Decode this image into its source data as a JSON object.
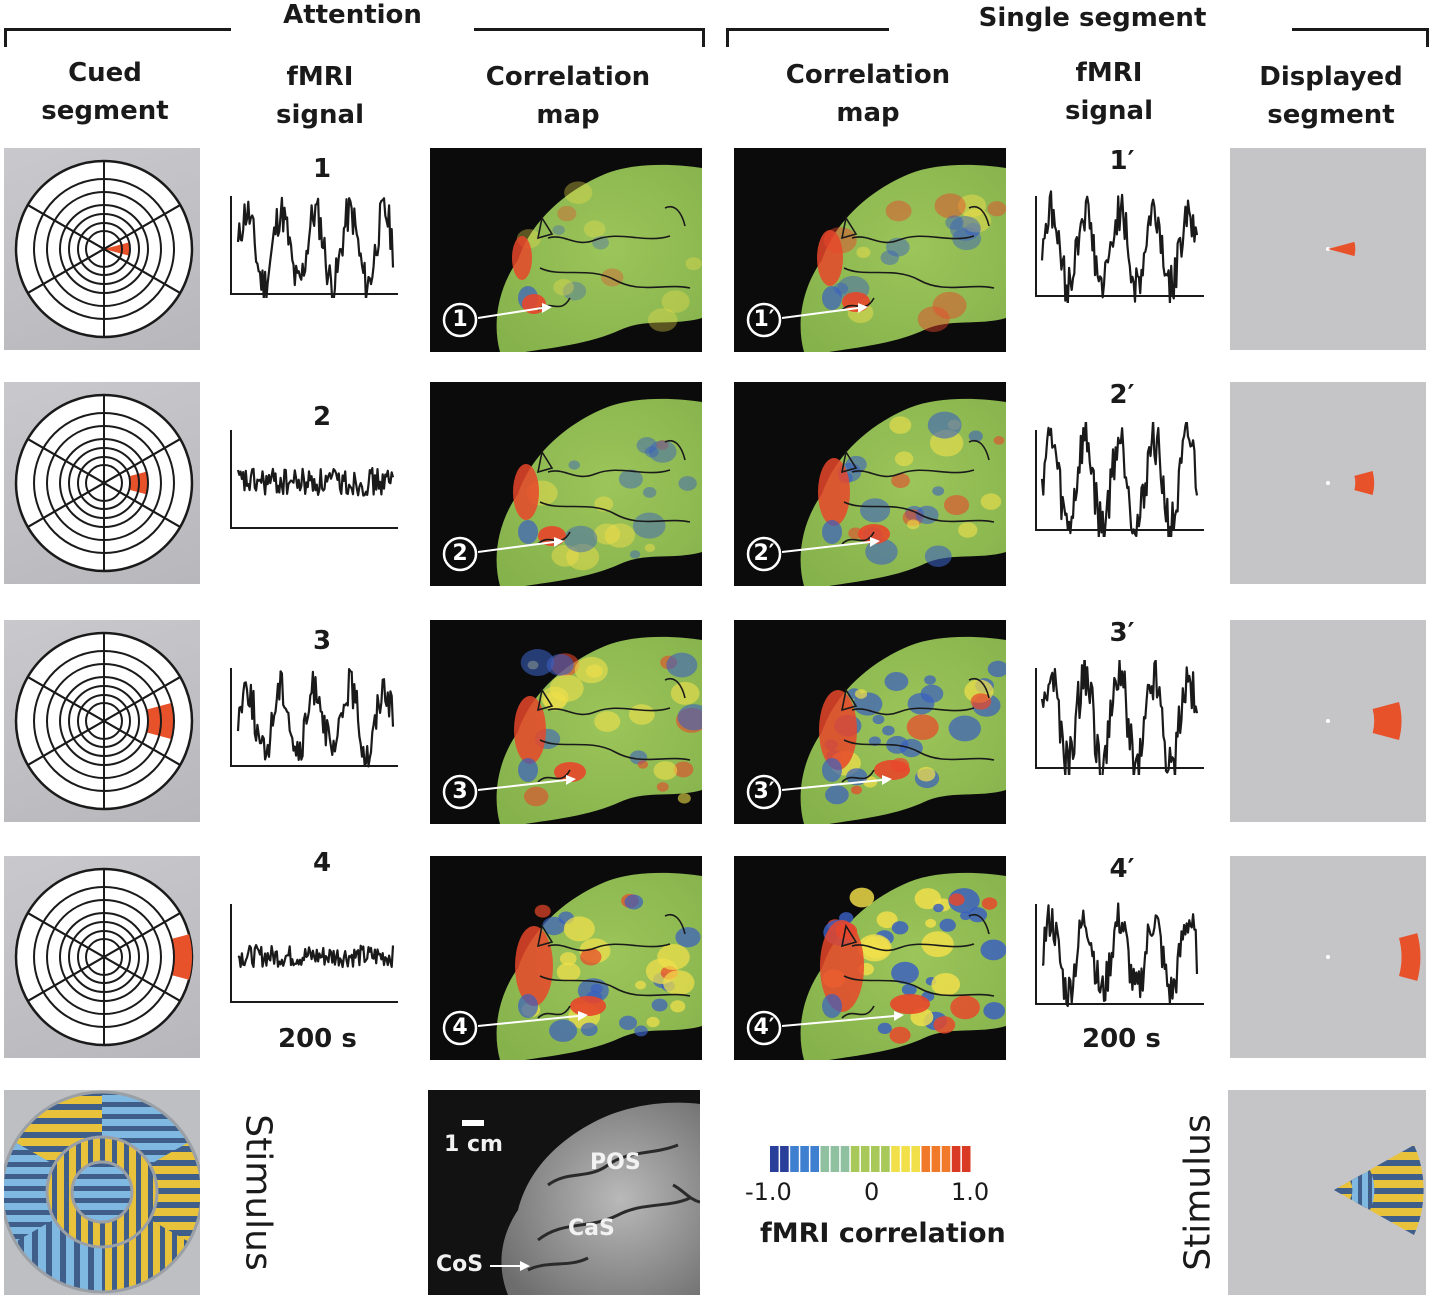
{
  "groups": {
    "attention": "Attention",
    "single_segment": "Single segment"
  },
  "headers": {
    "cued_segment": "Cued\nsegment",
    "fmri_signal_left": "fMRI\nsignal",
    "corr_map_left": "Correlation\nmap",
    "corr_map_right": "Correlation\nmap",
    "fmri_signal_right": "fMRI\nsignal",
    "displayed_segment": "Displayed\nsegment"
  },
  "rows": [
    {
      "left_num": "1",
      "right_num": "1′",
      "left_marker": "1",
      "right_marker": "1′"
    },
    {
      "left_num": "2",
      "right_num": "2′",
      "left_marker": "2",
      "right_marker": "2′"
    },
    {
      "left_num": "3",
      "right_num": "3′",
      "left_marker": "3",
      "right_marker": "3′"
    },
    {
      "left_num": "4",
      "right_num": "4′",
      "left_marker": "4",
      "right_marker": "4′"
    }
  ],
  "time_scale_left": "200 s",
  "time_scale_right": "200 s",
  "stimulus_left": "Stimulus",
  "stimulus_right": "Stimulus",
  "anatomy": {
    "scale": "1 cm",
    "pos": "POS",
    "cas": "CaS",
    "cos": "CoS"
  },
  "colorbar": {
    "min": "-1.0",
    "mid": "0",
    "max": "1.0",
    "title": "fMRI correlation",
    "colors": [
      "#2a3f9a",
      "#3f7fd0",
      "#8fc0a0",
      "#a8c85a",
      "#f2e04a",
      "#f07a2a",
      "#d83a24"
    ]
  },
  "accent": {
    "segment": "#e8522a",
    "map_green": "#8fbf4a",
    "map_blue": "#3a5fc0",
    "map_red": "#e8462a"
  }
}
